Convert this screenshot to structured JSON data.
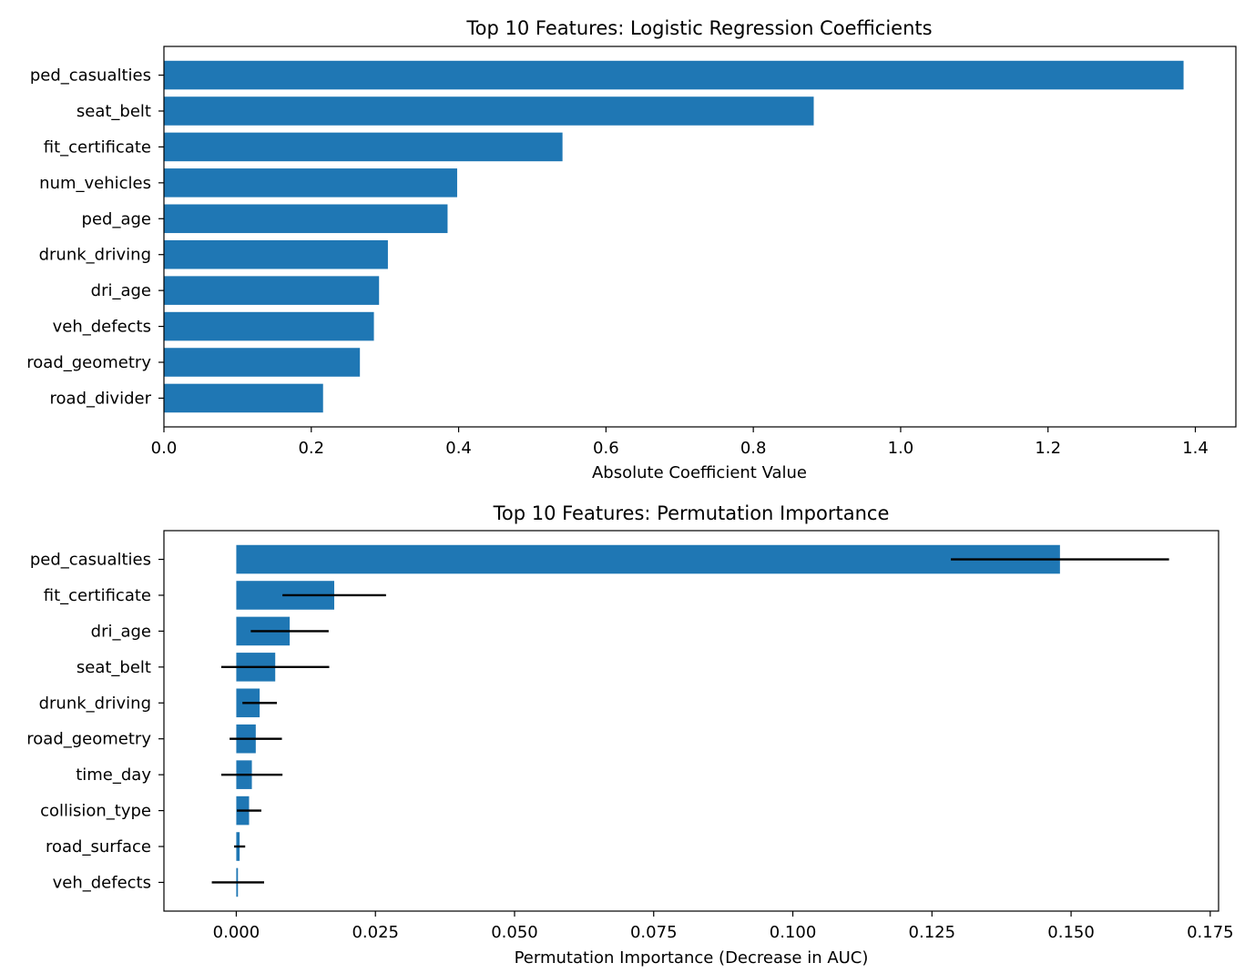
{
  "chart_data": [
    {
      "type": "bar",
      "orientation": "horizontal",
      "title": "Top 10 Features: Logistic Regression Coefficients",
      "xlabel": "Absolute Coefficient Value",
      "ylabel": "",
      "xlim": [
        0,
        1.455
      ],
      "xticks": [
        "0.0",
        "0.2",
        "0.4",
        "0.6",
        "0.8",
        "1.0",
        "1.2",
        "1.4"
      ],
      "xtick_values": [
        0,
        0.2,
        0.4,
        0.6,
        0.8,
        1.0,
        1.2,
        1.4
      ],
      "bar_color": "#1f77b4",
      "grid": false,
      "categories": [
        "ped_casualties",
        "seat_belt",
        "fit_certificate",
        "num_vehicles",
        "ped_age",
        "drunk_driving",
        "dri_age",
        "veh_defects",
        "road_geometry",
        "road_divider"
      ],
      "values": [
        1.384,
        0.882,
        0.541,
        0.398,
        0.385,
        0.304,
        0.292,
        0.285,
        0.266,
        0.216
      ]
    },
    {
      "type": "bar",
      "orientation": "horizontal",
      "title": "Top 10 Features: Permutation Importance",
      "xlabel": "Permutation Importance (Decrease in AUC)",
      "ylabel": "",
      "xlim": [
        -0.013,
        0.1765
      ],
      "xticks": [
        "0.000",
        "0.025",
        "0.050",
        "0.075",
        "0.100",
        "0.125",
        "0.150",
        "0.175"
      ],
      "xtick_values": [
        0,
        0.025,
        0.05,
        0.075,
        0.1,
        0.125,
        0.15,
        0.175
      ],
      "bar_color": "#1f77b4",
      "errorbar_color": "#000000",
      "grid": false,
      "categories": [
        "ped_casualties",
        "fit_certificate",
        "dri_age",
        "seat_belt",
        "drunk_driving",
        "road_geometry",
        "time_day",
        "collision_type",
        "road_surface",
        "veh_defects"
      ],
      "values": [
        0.148,
        0.0176,
        0.0096,
        0.007,
        0.0042,
        0.0035,
        0.0028,
        0.0023,
        0.0006,
        0.0003
      ],
      "errors": [
        0.0196,
        0.0093,
        0.007,
        0.0097,
        0.0031,
        0.0047,
        0.0055,
        0.0022,
        0.001,
        0.0047
      ]
    }
  ]
}
